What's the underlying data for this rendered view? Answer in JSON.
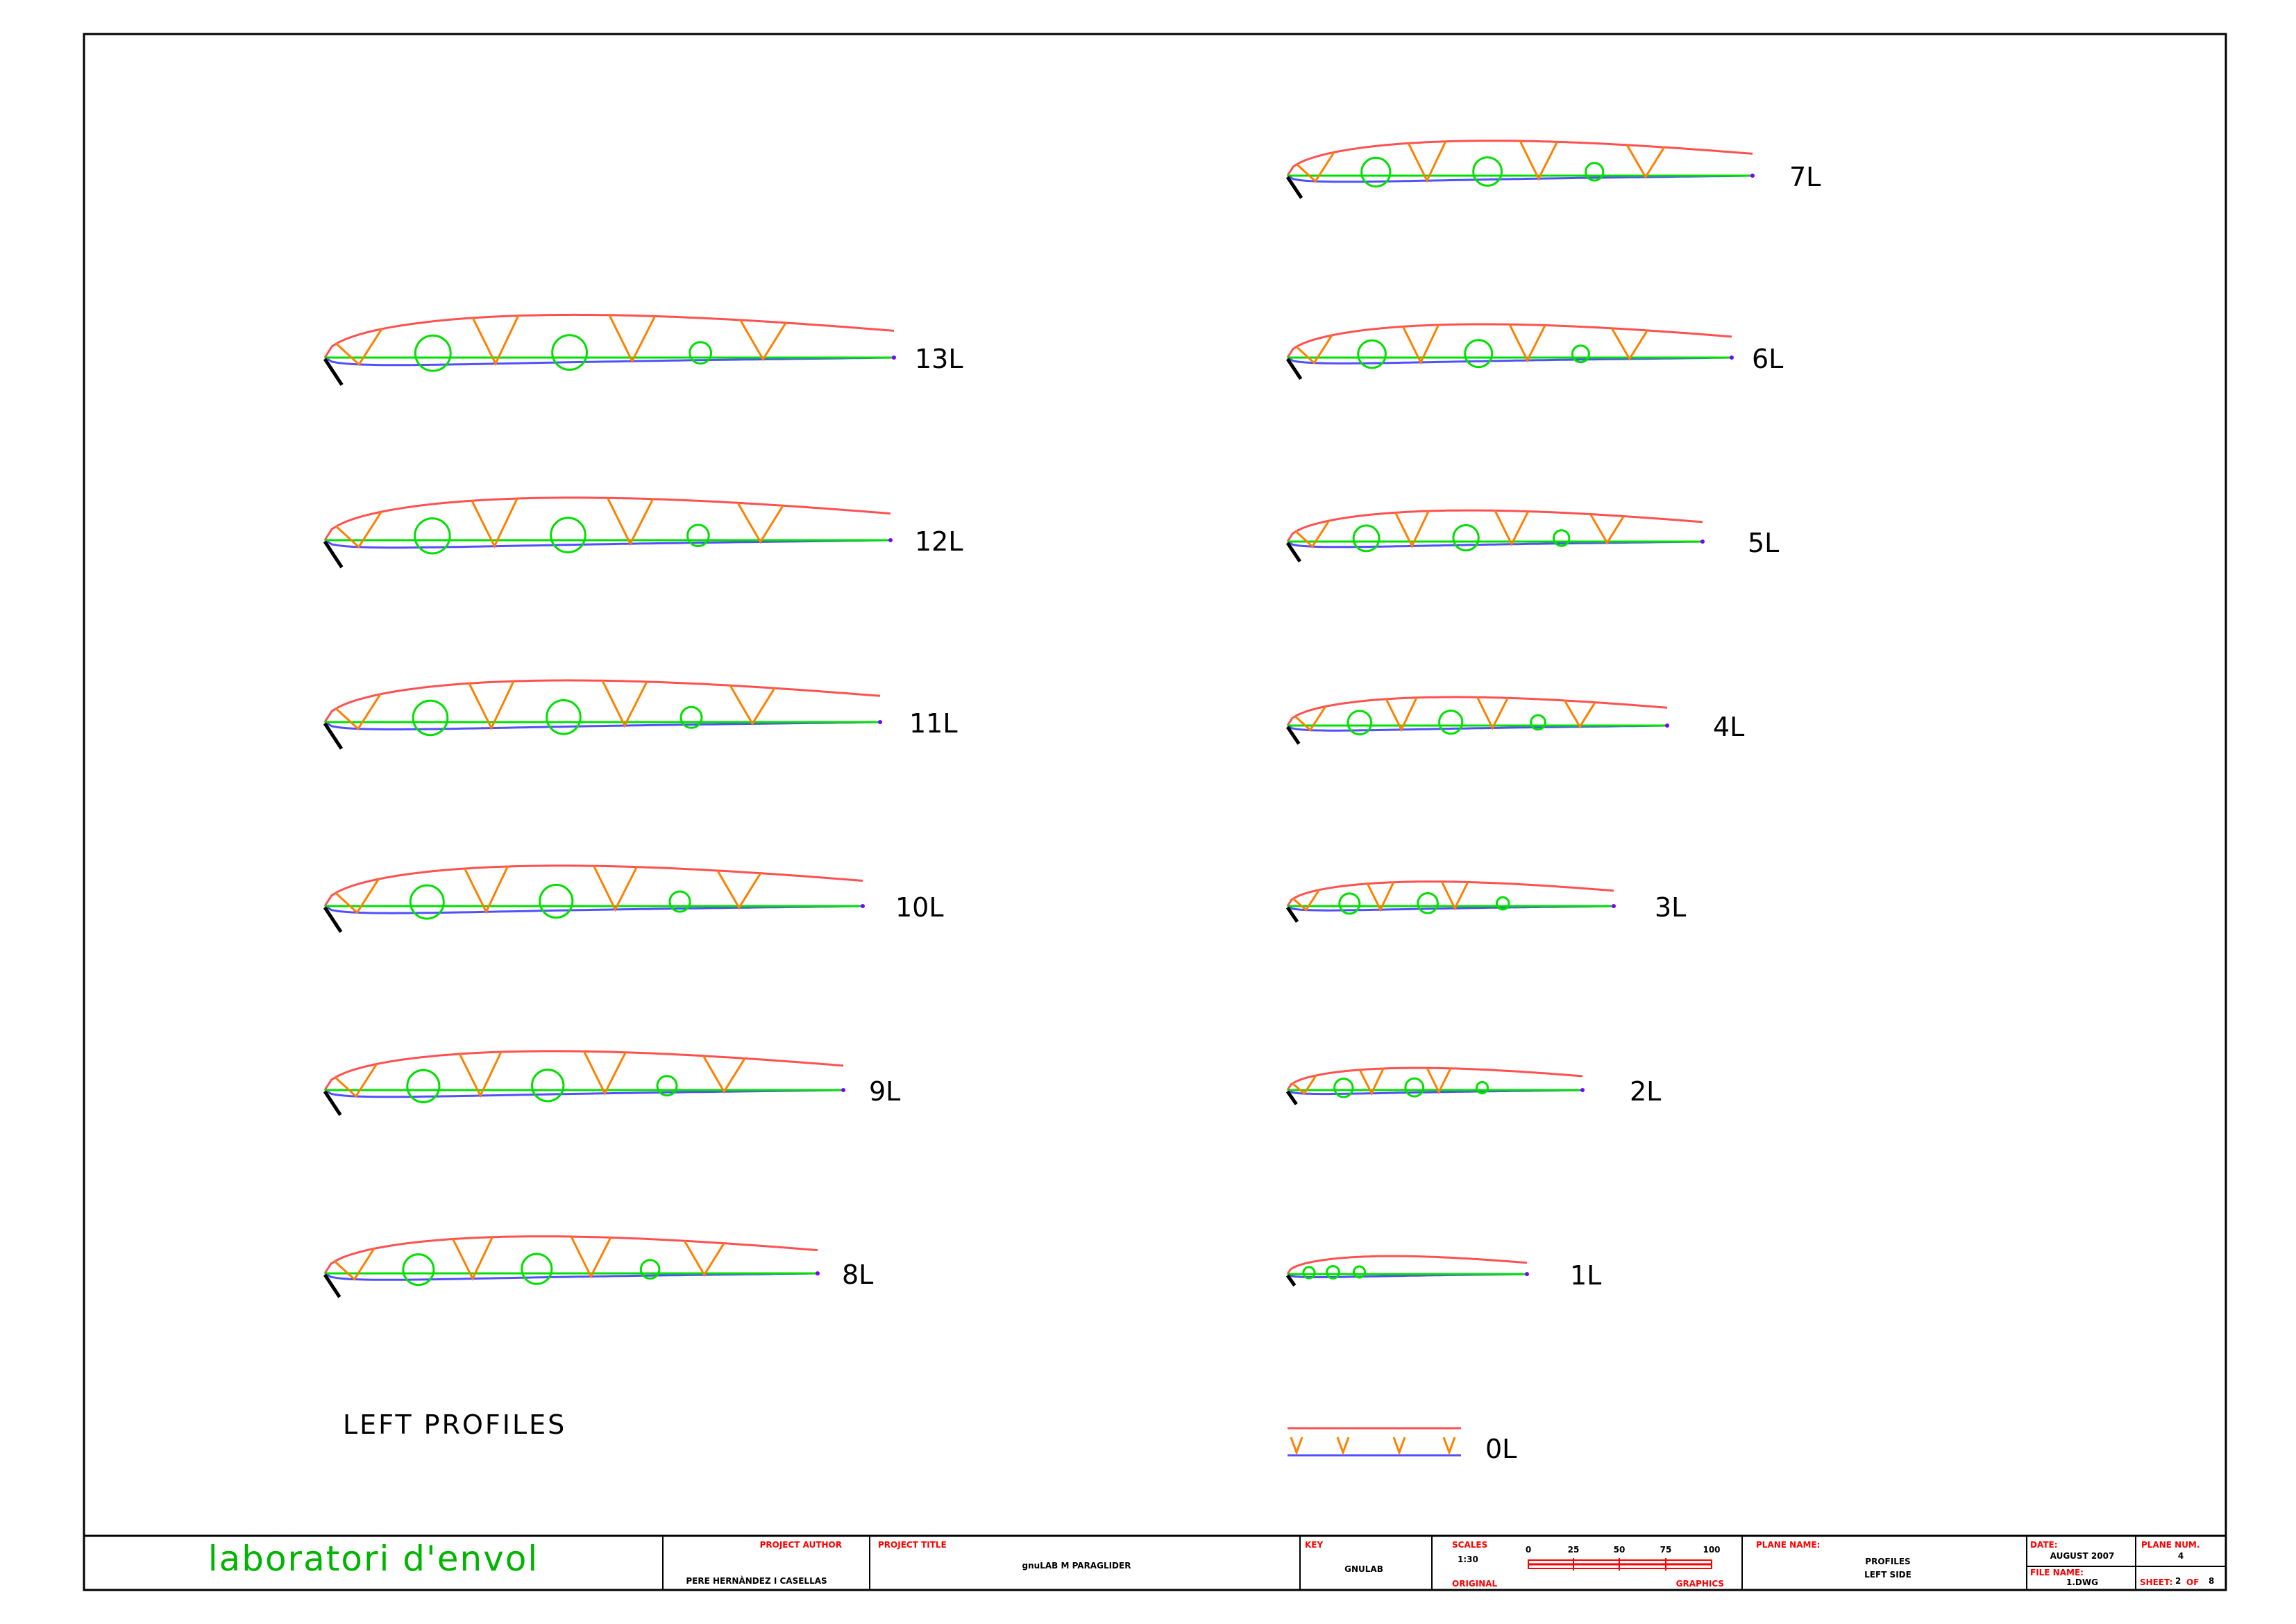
{
  "sheet_title": "LEFT PROFILES",
  "profiles": [
    {
      "label": "13L"
    },
    {
      "label": "12L"
    },
    {
      "label": "11L"
    },
    {
      "label": "10L"
    },
    {
      "label": "9L"
    },
    {
      "label": "8L"
    },
    {
      "label": "7L"
    },
    {
      "label": "6L"
    },
    {
      "label": "5L"
    },
    {
      "label": "4L"
    },
    {
      "label": "3L"
    },
    {
      "label": "2L"
    },
    {
      "label": "1L"
    }
  ],
  "center_profile": {
    "label": "0L"
  },
  "colors": {
    "upper_surface": "#ff5050",
    "lower_surface": "#5050ff",
    "chord_line": "#00e000",
    "vent_holes": "#00e000",
    "diagonals": "#ff8000",
    "nose": "#000000"
  },
  "title_block": {
    "brand": "laboratori d'envol",
    "project_author_heading": "PROJECT AUTHOR",
    "project_author": "PERE HERNÀNDEZ I CASELLAS",
    "project_title_heading": "PROJECT TITLE",
    "project_title": "gnuLAB M PARAGLIDER",
    "key_heading": "KEY",
    "key": "GNULAB",
    "scales_heading": "SCALES",
    "scale": "1:30",
    "scale_ticks": [
      "0",
      "25",
      "50",
      "75",
      "100"
    ],
    "original_label": "ORIGINAL",
    "graphics_label": "GRAPHICS",
    "plane_name_heading": "PLANE NAME:",
    "plane_name_line1": "PROFILES",
    "plane_name_line2": "LEFT SIDE",
    "date_heading": "DATE:",
    "date": "AUGUST 2007",
    "plane_num_heading": "PLANE NUM.",
    "plane_num": "4",
    "file_name_heading": "FILE NAME:",
    "file_name": "1.DWG",
    "sheet_prefix": "SHEET:",
    "sheet_num": "2",
    "sheet_of": "OF",
    "sheet_total": "8"
  }
}
